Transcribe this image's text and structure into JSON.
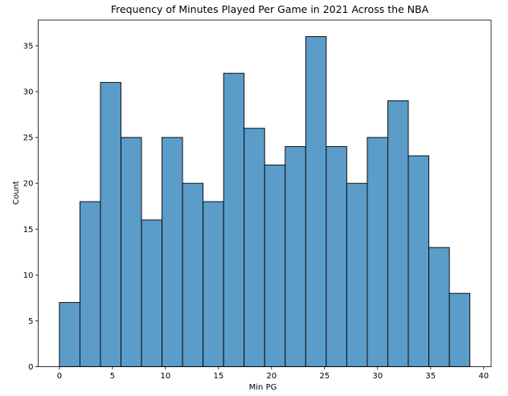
{
  "chart_data": {
    "type": "histogram",
    "title": "Frequency of Minutes Played Per Game in 2021 Across the NBA",
    "xlabel": "Min PG",
    "ylabel": "Count",
    "bin_edges": [
      0.0,
      1.935,
      3.87,
      5.805,
      7.74,
      9.675,
      11.61,
      13.545,
      15.48,
      17.415,
      19.35,
      21.285,
      23.22,
      25.155,
      27.09,
      29.025,
      30.96,
      32.895,
      34.83,
      36.765,
      38.7
    ],
    "counts": [
      7,
      18,
      31,
      25,
      16,
      25,
      20,
      18,
      32,
      26,
      22,
      24,
      36,
      24,
      20,
      25,
      29,
      23,
      13,
      8
    ],
    "xlim": [
      -2.0,
      40.7
    ],
    "ylim": [
      0,
      37.8
    ],
    "xticks": [
      0,
      5,
      10,
      15,
      20,
      25,
      30,
      35,
      40
    ],
    "yticks": [
      0,
      5,
      10,
      15,
      20,
      25,
      30,
      35
    ],
    "bar_color": "#5b9cc8",
    "edge_color": "#000000",
    "grid": false
  }
}
